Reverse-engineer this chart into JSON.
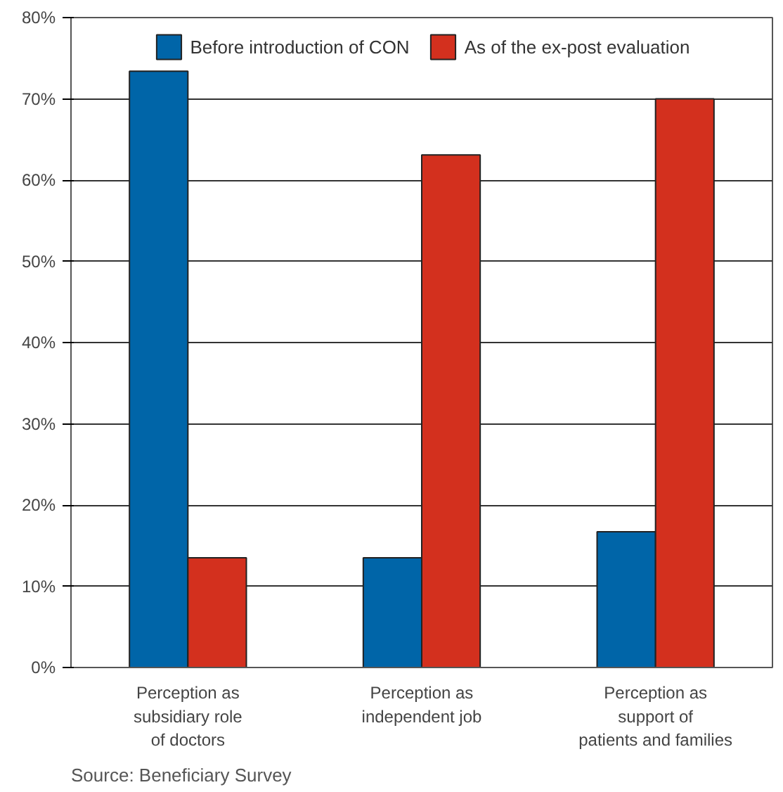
{
  "chart_data": {
    "type": "bar",
    "categories": [
      "Perception as\nsubsidiary role\nof doctors",
      "Perception as\nindependent job",
      "Perception as\nsupport of\npatients and families"
    ],
    "series": [
      {
        "name": "Before introduction of CON",
        "color": "#0065a8",
        "values": [
          73.4,
          13.5,
          16.7
        ]
      },
      {
        "name": "As of the ex-post evaluation",
        "color": "#d3301e",
        "values": [
          13.5,
          63.1,
          70.0
        ]
      }
    ],
    "ylim": [
      0,
      80
    ],
    "yticks": [
      {
        "value": 0,
        "label": "0%"
      },
      {
        "value": 10,
        "label": "10%"
      },
      {
        "value": 20,
        "label": "20%"
      },
      {
        "value": 30,
        "label": "30%"
      },
      {
        "value": 40,
        "label": "40%"
      },
      {
        "value": 50,
        "label": "50%"
      },
      {
        "value": 60,
        "label": "60%"
      },
      {
        "value": 70,
        "label": "70%"
      },
      {
        "value": 80,
        "label": "80%"
      }
    ],
    "grid": "y",
    "legend": "top",
    "annotations": [
      "Source: Beneficiary Survey"
    ]
  }
}
